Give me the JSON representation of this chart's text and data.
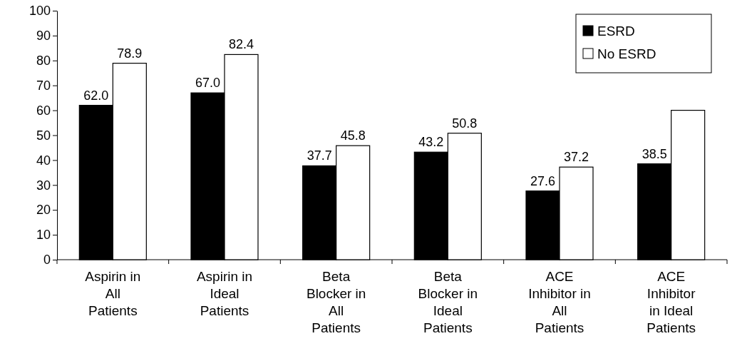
{
  "chart_data": {
    "type": "bar",
    "categories": [
      "Aspirin in\nAll\nPatients",
      "Aspirin in\nIdeal\nPatients",
      "Beta\nBlocker in\nAll\nPatients",
      "Beta\nBlocker in\nIdeal\nPatients",
      "ACE\nInhibitor in\nAll\nPatients",
      "ACE\nInhibitor\nin Ideal\nPatients"
    ],
    "series": [
      {
        "name": "ESRD",
        "color": "#000000",
        "values": [
          62.0,
          67.0,
          37.7,
          43.2,
          27.6,
          38.5
        ],
        "value_labels": [
          "62.0",
          "67.0",
          "37.7",
          "43.2",
          "27.6",
          "38.5"
        ]
      },
      {
        "name": "No ESRD",
        "color": "#ffffff",
        "values": [
          78.9,
          82.4,
          45.8,
          50.8,
          37.2,
          60
        ],
        "value_labels": [
          "78.9",
          "82.4",
          "45.8",
          "50.8",
          "37.2",
          null
        ]
      }
    ],
    "ylim": [
      0,
      100
    ],
    "yticks": [
      0,
      10,
      20,
      30,
      40,
      50,
      60,
      70,
      80,
      90,
      100
    ],
    "grid": false,
    "legend": "top right"
  }
}
